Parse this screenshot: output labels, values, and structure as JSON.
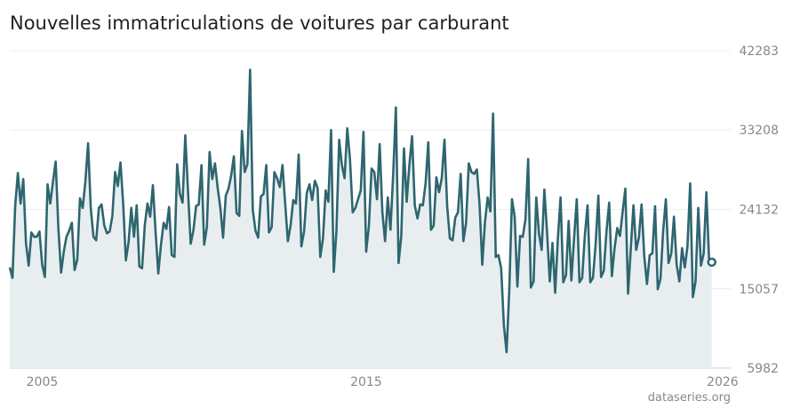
{
  "chart_data": {
    "type": "area",
    "title": "Nouvelles immatriculations de voitures par carburant",
    "source": "dataseries.org",
    "ylim": [
      5982,
      42283
    ],
    "yticks": [
      {
        "value": 42283,
        "label": "42283"
      },
      {
        "value": 33208,
        "label": "33208"
      },
      {
        "value": 24132,
        "label": "24132"
      },
      {
        "value": 15057,
        "label": "15057"
      },
      {
        "value": 5982,
        "label": "5982"
      }
    ],
    "xlim": [
      "2004-01",
      "2026-04"
    ],
    "xticks": [
      {
        "value": "2005-01",
        "label": "2005"
      },
      {
        "value": "2015-01",
        "label": "2015"
      },
      {
        "value": "2026-01",
        "label": "2026"
      }
    ],
    "grid": true,
    "line_color": "#2e6670",
    "fill_color": "#e8eef0",
    "series": [
      {
        "start": "2004-01",
        "values": [
          17500,
          16300,
          24500,
          28300,
          24800,
          27600,
          20300,
          17700,
          21500,
          21000,
          21000,
          21600,
          17800,
          16400,
          27000,
          24800,
          27300,
          29600,
          22000,
          16900,
          19300,
          21000,
          21700,
          22600,
          17200,
          18400,
          25400,
          24300,
          27300,
          31700,
          24300,
          21000,
          20600,
          24300,
          24700,
          22300,
          21400,
          21600,
          23400,
          28400,
          26800,
          29500,
          24800,
          18300,
          20400,
          24300,
          21000,
          24600,
          17600,
          17400,
          22300,
          24800,
          23300,
          26900,
          21600,
          16800,
          20100,
          22600,
          21900,
          24400,
          18900,
          18700,
          29300,
          25900,
          24900,
          32600,
          26300,
          20200,
          21700,
          24500,
          24700,
          29200,
          20100,
          22100,
          30700,
          27600,
          29400,
          26600,
          24300,
          20900,
          25700,
          26500,
          28000,
          30200,
          23700,
          23400,
          33100,
          28400,
          29300,
          40100,
          24100,
          21700,
          20900,
          25600,
          25900,
          29200,
          21500,
          22100,
          28400,
          27700,
          26700,
          29200,
          24800,
          20500,
          22300,
          25200,
          24800,
          30400,
          19900,
          21600,
          26000,
          27000,
          25200,
          27400,
          26600,
          18700,
          20800,
          26300,
          25000,
          33200,
          17000,
          21800,
          32100,
          29200,
          27700,
          33400,
          29900,
          23800,
          24300,
          25300,
          26300,
          33000,
          19300,
          22200,
          28800,
          28400,
          25300,
          31600,
          23800,
          20500,
          25500,
          21800,
          28100,
          35800,
          18000,
          21100,
          31100,
          25000,
          29200,
          32500,
          24600,
          23100,
          24700,
          24600,
          27100,
          31800,
          21800,
          22300,
          27800,
          26100,
          27700,
          32100,
          24500,
          20800,
          20600,
          23200,
          23800,
          28200,
          20500,
          22600,
          29400,
          28400,
          28200,
          28700,
          24700,
          17800,
          22700,
          25500,
          23900,
          35100,
          18700,
          18900,
          17400,
          10900,
          7800,
          14900,
          25300,
          23300,
          15300,
          21100,
          21000,
          23000,
          29900,
          15200,
          15900,
          25500,
          21400,
          19500,
          26400,
          21500,
          15900,
          20300,
          14600,
          20800,
          25500,
          15800,
          16600,
          22800,
          16000,
          20800,
          25300,
          15800,
          16300,
          21200,
          24600,
          15800,
          16300,
          20200,
          25700,
          16400,
          17100,
          21600,
          24900,
          16500,
          19700,
          22000,
          21100,
          23900,
          26500,
          14500,
          19600,
          24600,
          19500,
          20900,
          24700,
          18800,
          15600,
          18900,
          19100,
          24500,
          15000,
          16200,
          21700,
          25300,
          18000,
          19100,
          23300,
          17800,
          15900,
          19700,
          17500,
          19900,
          27100,
          14100,
          15900,
          24300,
          17700,
          19100,
          26100,
          18400,
          18100
        ]
      }
    ]
  }
}
